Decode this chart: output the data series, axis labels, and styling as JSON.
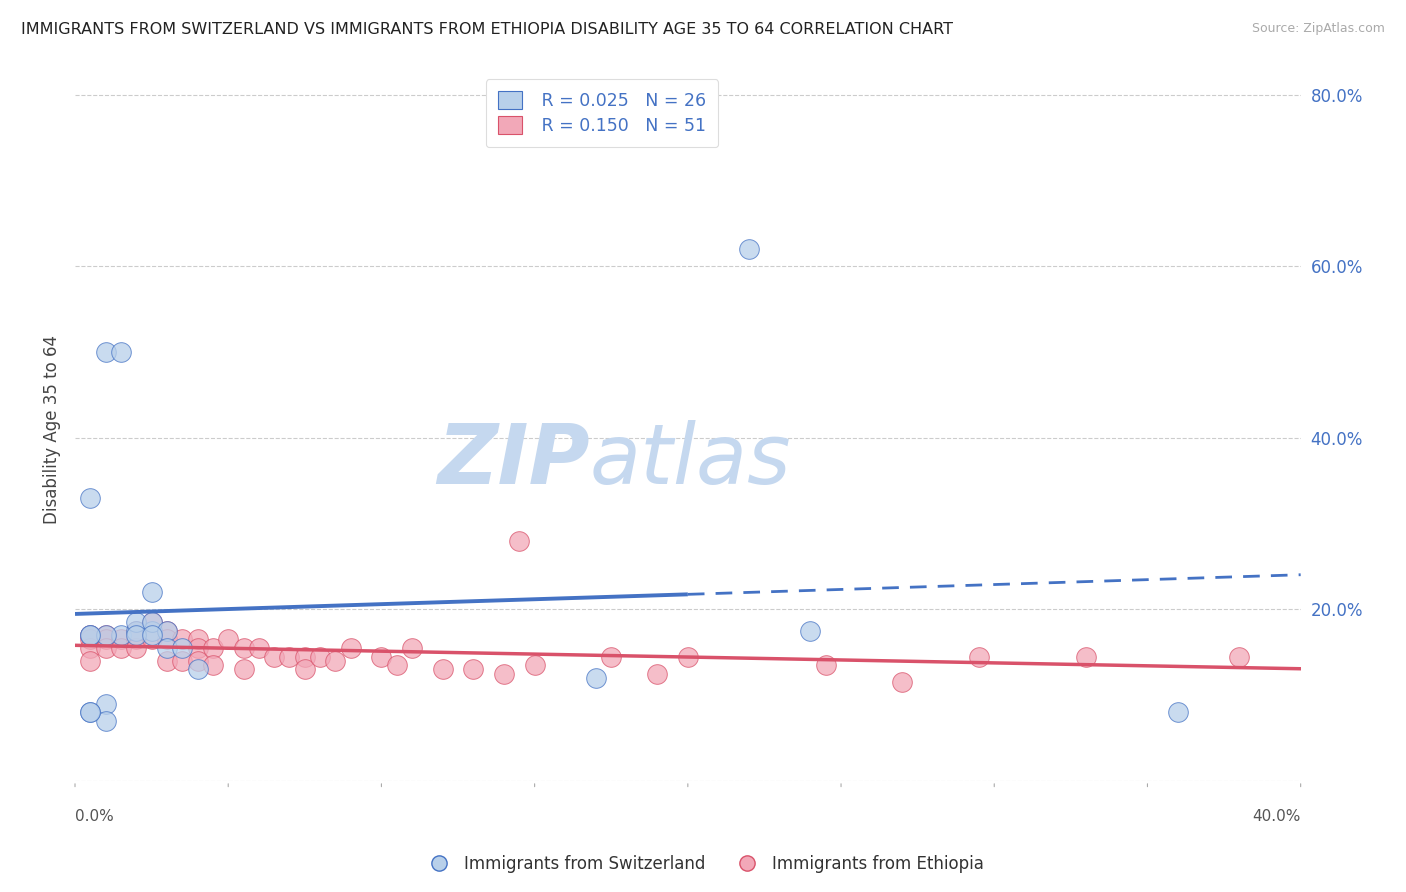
{
  "title": "IMMIGRANTS FROM SWITZERLAND VS IMMIGRANTS FROM ETHIOPIA DISABILITY AGE 35 TO 64 CORRELATION CHART",
  "source": "Source: ZipAtlas.com",
  "ylabel": "Disability Age 35 to 64",
  "xlim": [
    0.0,
    0.4
  ],
  "ylim": [
    0.0,
    0.82
  ],
  "yticks": [
    0.0,
    0.2,
    0.4,
    0.6,
    0.8
  ],
  "ytick_labels": [
    "",
    "20.0%",
    "40.0%",
    "60.0%",
    "80.0%"
  ],
  "xticks": [
    0.0,
    0.05,
    0.1,
    0.15,
    0.2,
    0.25,
    0.3,
    0.35,
    0.4
  ],
  "legend_r_switzerland": "R = 0.025",
  "legend_n_switzerland": "N = 26",
  "legend_r_ethiopia": "R = 0.150",
  "legend_n_ethiopia": "N = 51",
  "color_switzerland_fill": "#b8d0ea",
  "color_ethiopia_fill": "#f2a8b8",
  "color_switzerland_line": "#4472c4",
  "color_ethiopia_line": "#d9526a",
  "color_legend_text_rn": "#4472c4",
  "color_legend_text_label": "#333333",
  "watermark_zip": "ZIP",
  "watermark_atlas": "atlas",
  "watermark_color_zip": "#c5d8ef",
  "watermark_color_atlas": "#c5d8ef",
  "background_color": "#ffffff",
  "grid_color": "#cccccc",
  "sw_line_solid_end": 0.2,
  "switzerland_x": [
    0.005,
    0.01,
    0.015,
    0.005,
    0.01,
    0.01,
    0.015,
    0.02,
    0.025,
    0.025,
    0.005,
    0.01,
    0.02,
    0.025,
    0.03,
    0.03,
    0.035,
    0.04,
    0.005,
    0.02,
    0.025,
    0.17,
    0.22,
    0.24,
    0.36,
    0.005
  ],
  "switzerland_y": [
    0.33,
    0.5,
    0.5,
    0.17,
    0.09,
    0.07,
    0.17,
    0.175,
    0.22,
    0.175,
    0.08,
    0.17,
    0.185,
    0.185,
    0.175,
    0.155,
    0.155,
    0.13,
    0.17,
    0.17,
    0.17,
    0.12,
    0.62,
    0.175,
    0.08,
    0.08
  ],
  "ethiopia_x": [
    0.005,
    0.005,
    0.005,
    0.005,
    0.01,
    0.01,
    0.01,
    0.015,
    0.015,
    0.02,
    0.02,
    0.02,
    0.025,
    0.025,
    0.03,
    0.03,
    0.03,
    0.035,
    0.035,
    0.04,
    0.04,
    0.04,
    0.045,
    0.045,
    0.05,
    0.055,
    0.055,
    0.06,
    0.065,
    0.07,
    0.075,
    0.075,
    0.08,
    0.085,
    0.09,
    0.1,
    0.105,
    0.11,
    0.12,
    0.13,
    0.14,
    0.145,
    0.15,
    0.175,
    0.19,
    0.2,
    0.245,
    0.27,
    0.295,
    0.33,
    0.38
  ],
  "ethiopia_y": [
    0.17,
    0.165,
    0.155,
    0.14,
    0.17,
    0.165,
    0.155,
    0.165,
    0.155,
    0.175,
    0.165,
    0.155,
    0.185,
    0.165,
    0.175,
    0.165,
    0.14,
    0.165,
    0.14,
    0.165,
    0.155,
    0.14,
    0.155,
    0.135,
    0.165,
    0.155,
    0.13,
    0.155,
    0.145,
    0.145,
    0.145,
    0.13,
    0.145,
    0.14,
    0.155,
    0.145,
    0.135,
    0.155,
    0.13,
    0.13,
    0.125,
    0.28,
    0.135,
    0.145,
    0.125,
    0.145,
    0.135,
    0.115,
    0.145,
    0.145,
    0.145
  ]
}
